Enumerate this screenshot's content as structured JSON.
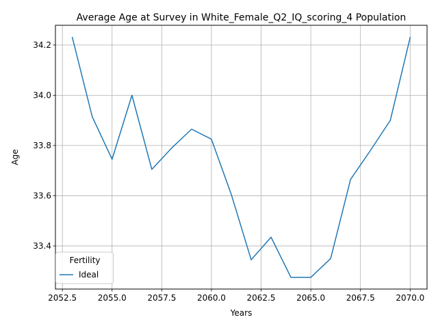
{
  "chart_data": {
    "type": "line",
    "title": "Average Age at Survey in White_Female_Q2_IQ_scoring_4 Population",
    "xlabel": "Years",
    "ylabel": "Age",
    "xlim": [
      2052.15,
      2070.85
    ],
    "ylim": [
      33.2285,
      34.2785
    ],
    "xticks": [
      "2052.5",
      "2055.0",
      "2057.5",
      "2060.0",
      "2062.5",
      "2065.0",
      "2067.5",
      "2070.0"
    ],
    "yticks": [
      "33.4",
      "33.6",
      "33.8",
      "34.0",
      "34.2"
    ],
    "grid": true,
    "legend": {
      "title": "Fertility",
      "position": "lower-left"
    },
    "series": [
      {
        "name": "Ideal",
        "color": "#1f77b4",
        "x": [
          2053,
          2054,
          2055,
          2056,
          2057,
          2058,
          2059,
          2060,
          2061,
          2062,
          2063,
          2064,
          2065,
          2066,
          2067,
          2068,
          2069,
          2070
        ],
        "y": [
          34.23,
          33.915,
          33.745,
          34.0,
          33.705,
          33.79,
          33.865,
          33.825,
          33.605,
          33.345,
          33.435,
          33.275,
          33.275,
          33.35,
          33.665,
          33.78,
          33.9,
          34.23
        ]
      }
    ]
  }
}
